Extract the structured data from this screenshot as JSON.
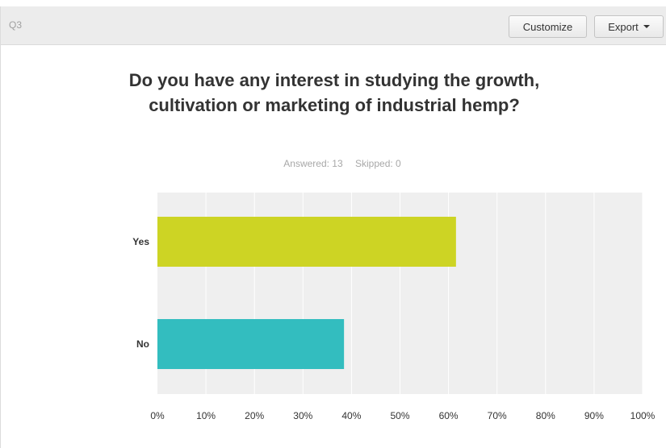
{
  "header": {
    "question_id": "Q3",
    "customize_label": "Customize",
    "export_label": "Export"
  },
  "stats": {
    "answered": "Answered: 13",
    "skipped": "Skipped: 0"
  },
  "colors": {
    "yes_bar": "#cdd424",
    "no_bar": "#33bdbf",
    "plot_bg": "#efefef"
  },
  "chart_data": {
    "type": "bar",
    "orientation": "horizontal",
    "title": "Do you have any interest in studying the growth, cultivation or marketing of industrial hemp?",
    "categories": [
      "Yes",
      "No"
    ],
    "values": [
      61.54,
      38.46
    ],
    "unit": "%",
    "xlim": [
      0,
      100
    ],
    "xticks": [
      "0%",
      "10%",
      "20%",
      "30%",
      "40%",
      "50%",
      "60%",
      "70%",
      "80%",
      "90%",
      "100%"
    ],
    "grid": true,
    "legend": "none"
  }
}
